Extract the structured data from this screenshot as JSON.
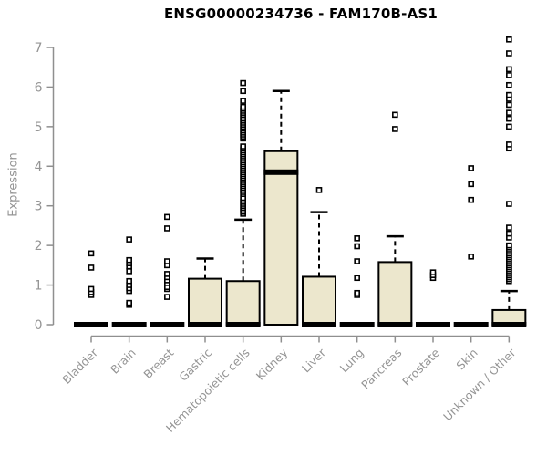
{
  "chart_data": {
    "type": "boxplot",
    "title": "ENSG00000234736 - FAM170B-AS1",
    "ylabel": "Expression",
    "xlabel": "",
    "ylim": [
      0,
      7
    ],
    "yticks": [
      0,
      1,
      2,
      3,
      4,
      5,
      6,
      7
    ],
    "grid": false,
    "legend": "none",
    "colors": {
      "box_fill": "#ece7cd",
      "box_stroke": "#000000",
      "median": "#000000",
      "whisker": "#000000",
      "outlier_stroke": "#000000",
      "outlier_fill": "#ffffff",
      "axis": "#8f8f8f",
      "tick_label": "#949494",
      "title": "#000000",
      "background": "#ffffff"
    },
    "categories": [
      "Bladder",
      "Brain",
      "Breast",
      "Gastric",
      "Hematopoietic cells",
      "Kidney",
      "Liver",
      "Lung",
      "Pancreas",
      "Prostate",
      "Skin",
      "Unknown / Other"
    ],
    "boxes": [
      {
        "category": "Bladder",
        "q1": 0,
        "median": 0,
        "q3": 0,
        "whisker_low": 0,
        "whisker_high": 0,
        "outliers": [
          0.75,
          0.82,
          0.9,
          1.44,
          1.8
        ]
      },
      {
        "category": "Brain",
        "q1": 0,
        "median": 0,
        "q3": 0,
        "whisker_low": 0,
        "whisker_high": 0,
        "outliers": [
          0.5,
          0.55,
          0.85,
          0.92,
          1.0,
          1.1,
          1.35,
          1.47,
          1.55,
          1.63,
          2.15
        ]
      },
      {
        "category": "Breast",
        "q1": 0,
        "median": 0,
        "q3": 0,
        "whisker_low": 0,
        "whisker_high": 0,
        "outliers": [
          0.7,
          0.9,
          0.95,
          1.05,
          1.12,
          1.2,
          1.28,
          1.5,
          1.6,
          2.43,
          2.72
        ]
      },
      {
        "category": "Gastric",
        "q1": 0,
        "median": 0,
        "q3": 1.16,
        "whisker_low": 0,
        "whisker_high": 1.67,
        "outliers": []
      },
      {
        "category": "Hematopoietic cells",
        "q1": 0,
        "median": 0,
        "q3": 1.1,
        "whisker_low": 0,
        "whisker_high": 2.65,
        "outliers": [
          2.8,
          2.85,
          2.9,
          2.95,
          3.0,
          3.05,
          3.1,
          3.15,
          3.2,
          3.3,
          3.35,
          3.4,
          3.45,
          3.5,
          3.55,
          3.6,
          3.65,
          3.7,
          3.75,
          3.8,
          3.85,
          3.9,
          3.95,
          4.0,
          4.05,
          4.1,
          4.15,
          4.2,
          4.25,
          4.3,
          4.35,
          4.4,
          4.45,
          4.5,
          4.7,
          4.75,
          4.8,
          4.85,
          4.9,
          4.95,
          5.0,
          5.05,
          5.1,
          5.15,
          5.2,
          5.25,
          5.3,
          5.35,
          5.4,
          5.45,
          5.5,
          5.65,
          5.9,
          6.1
        ]
      },
      {
        "category": "Kidney",
        "q1": 0,
        "median": 3.85,
        "q3": 4.38,
        "whisker_low": 0,
        "whisker_high": 5.9,
        "outliers": []
      },
      {
        "category": "Liver",
        "q1": 0,
        "median": 0,
        "q3": 1.21,
        "whisker_low": 0,
        "whisker_high": 2.84,
        "outliers": [
          3.4
        ]
      },
      {
        "category": "Lung",
        "q1": 0,
        "median": 0,
        "q3": 0,
        "whisker_low": 0,
        "whisker_high": 0,
        "outliers": [
          0.75,
          0.8,
          1.18,
          1.6,
          1.98,
          2.18
        ]
      },
      {
        "category": "Pancreas",
        "q1": 0,
        "median": 0,
        "q3": 1.58,
        "whisker_low": 0,
        "whisker_high": 2.23,
        "outliers": [
          4.94,
          5.3
        ]
      },
      {
        "category": "Prostate",
        "q1": 0,
        "median": 0,
        "q3": 0,
        "whisker_low": 0,
        "whisker_high": 0,
        "outliers": [
          1.18,
          1.25,
          1.32
        ]
      },
      {
        "category": "Skin",
        "q1": 0,
        "median": 0,
        "q3": 0,
        "whisker_low": 0,
        "whisker_high": 0,
        "outliers": [
          1.72,
          3.15,
          3.55,
          3.95
        ]
      },
      {
        "category": "Unknown / Other",
        "q1": 0,
        "median": 0,
        "q3": 0.37,
        "whisker_low": 0,
        "whisker_high": 0.85,
        "outliers": [
          1.1,
          1.15,
          1.2,
          1.25,
          1.3,
          1.35,
          1.4,
          1.45,
          1.5,
          1.55,
          1.6,
          1.65,
          1.7,
          1.75,
          1.8,
          1.85,
          1.9,
          1.95,
          2.0,
          2.2,
          2.3,
          2.45,
          3.05,
          4.45,
          4.55,
          5.0,
          5.2,
          5.35,
          5.55,
          5.7,
          5.8,
          6.05,
          6.3,
          6.45,
          6.85,
          7.2
        ]
      }
    ]
  }
}
